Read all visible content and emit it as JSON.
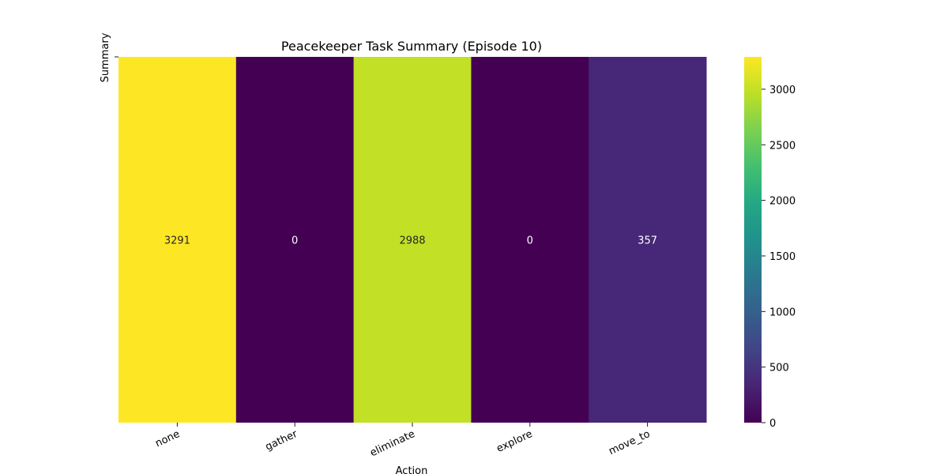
{
  "chart_data": {
    "type": "heatmap",
    "title": "Peacekeeper Task Summary (Episode 10)",
    "xlabel": "Action",
    "ylabel": "Summary",
    "categories": [
      "none",
      "gather",
      "eliminate",
      "explore",
      "move_to"
    ],
    "rows": [
      ""
    ],
    "values": [
      [
        3291,
        0,
        2988,
        0,
        357
      ]
    ],
    "annotations": [
      "3291",
      "0",
      "2988",
      "0",
      "357"
    ],
    "colormap": "viridis",
    "colorbar": {
      "vmin": 0,
      "vmax": 3291,
      "ticks": [
        0,
        500,
        1000,
        1500,
        2000,
        2500,
        3000
      ],
      "tick_labels": [
        "0",
        "500",
        "1000",
        "1500",
        "2000",
        "2500",
        "3000"
      ]
    },
    "grid": false,
    "tick_rotation_deg": 25
  }
}
